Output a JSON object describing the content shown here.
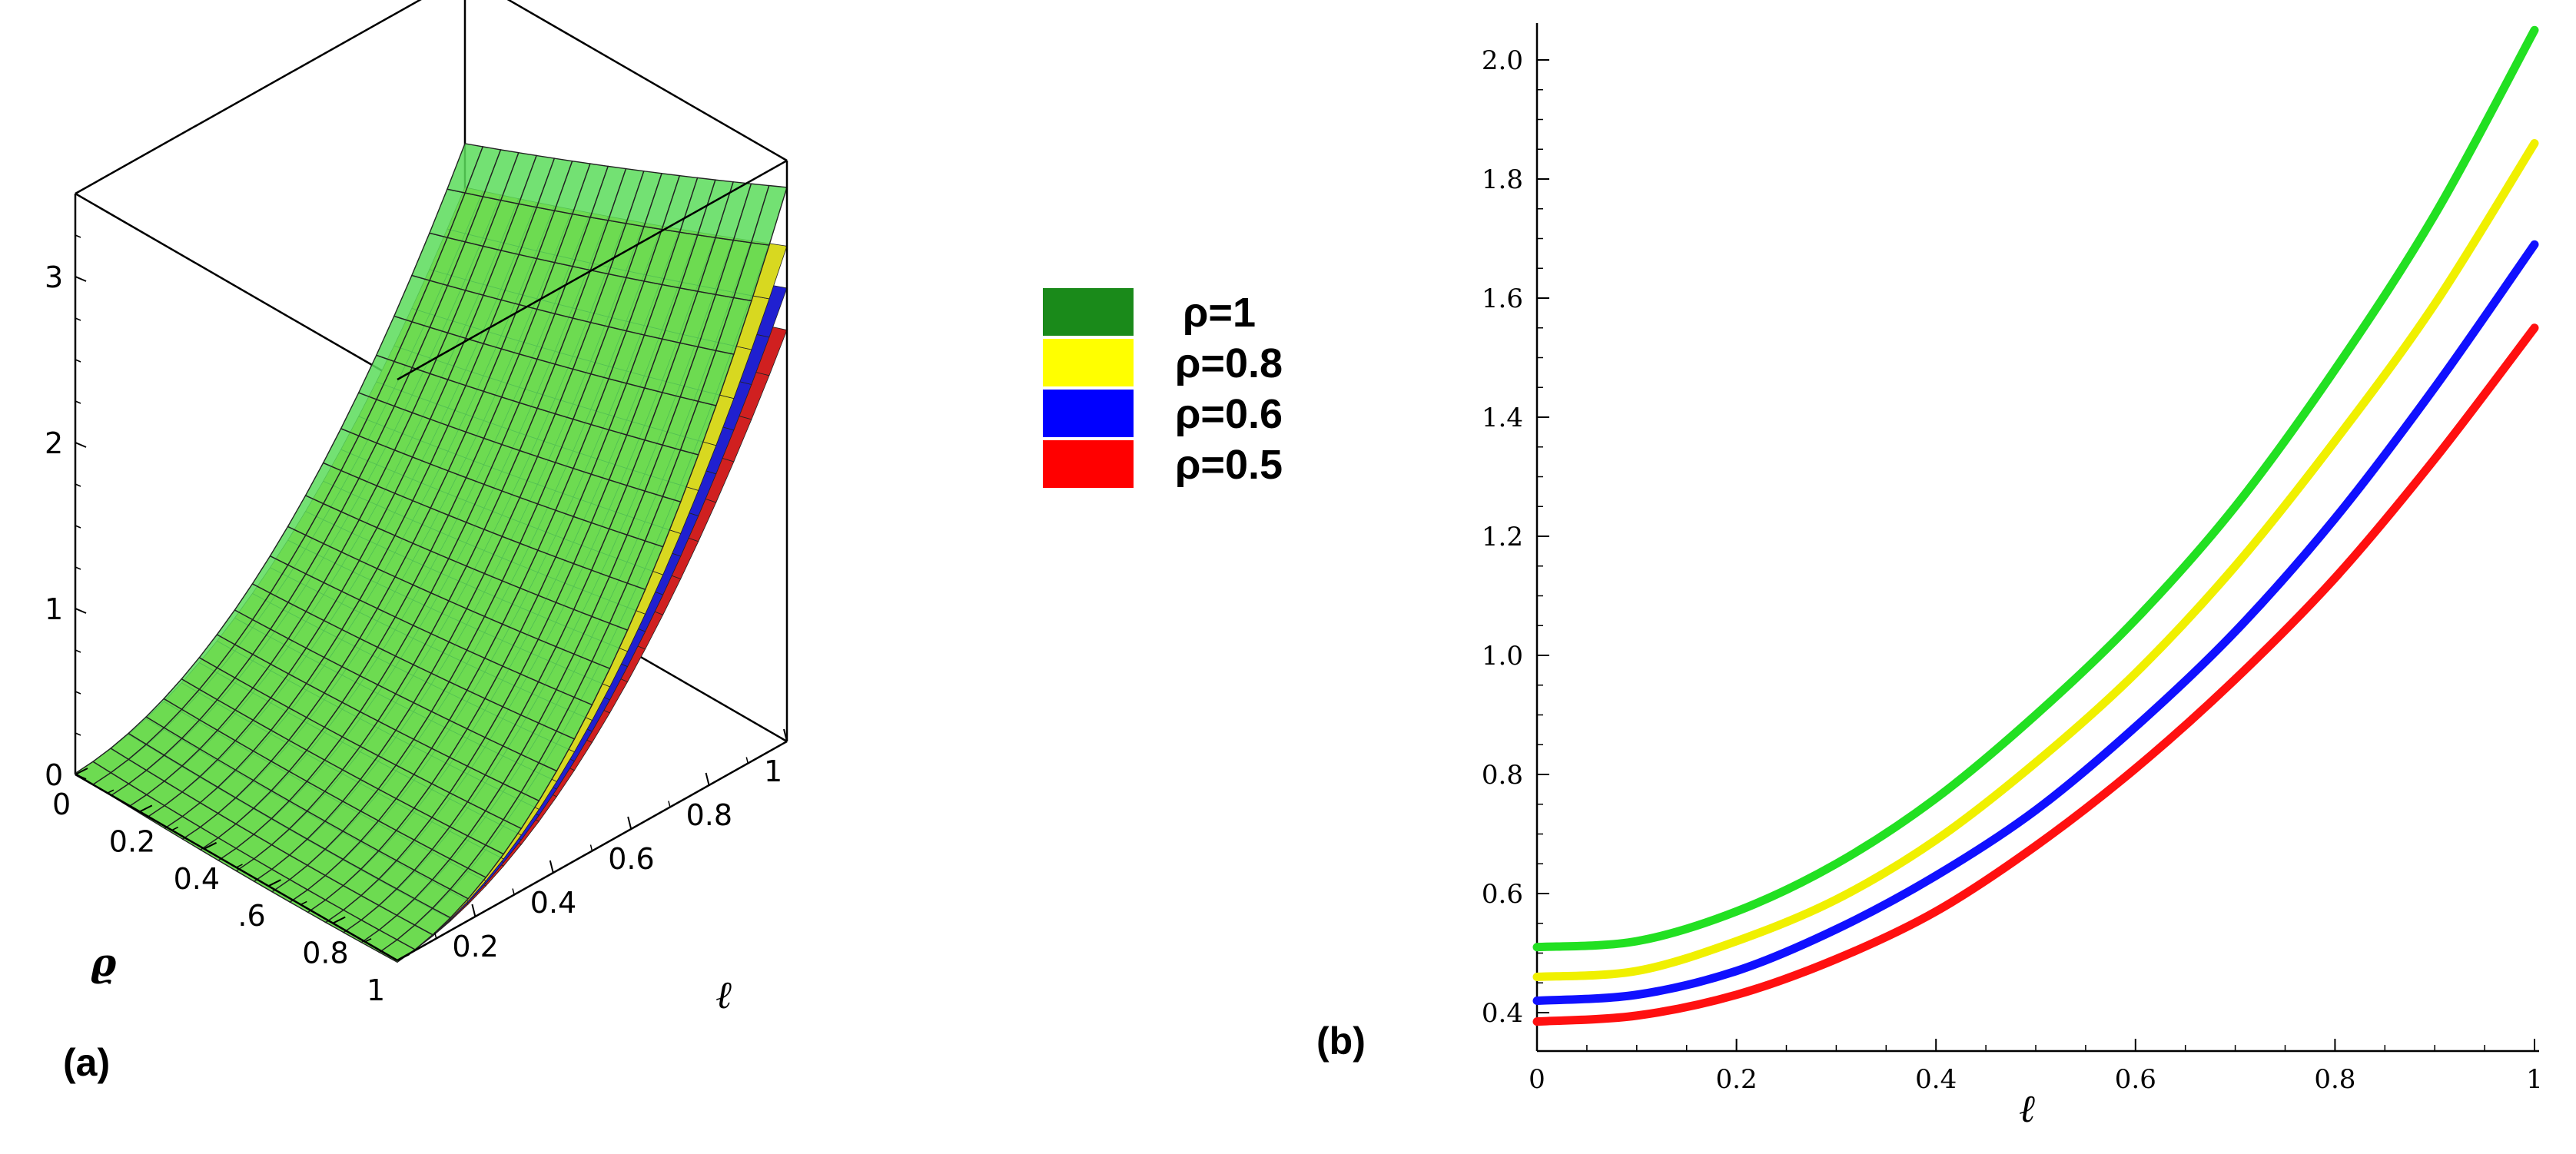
{
  "chart_data": [
    {
      "type": "surface3d",
      "panel_label": "(a)",
      "xlabel": "ϱ",
      "ylabel": "ℓ",
      "x_ticks": [
        "0",
        "0.2",
        "0.4",
        ".6",
        "0.8",
        "1"
      ],
      "y_ticks": [
        "0.2",
        "0.4",
        "0.6",
        "0.8",
        "1"
      ],
      "z_ticks": [
        "0",
        "1",
        "2",
        "3"
      ],
      "xlim": [
        0,
        1
      ],
      "ylim": [
        0,
        1
      ],
      "zlim": [
        0,
        3.5
      ],
      "series": [
        {
          "name": "ρ=1",
          "color": "#1a8a1a",
          "surface_color": "#4fd84f",
          "z_at_corner": 3.3
        },
        {
          "name": "ρ=0.8",
          "color": "#ffff00",
          "surface_color": "#d8d820",
          "z_at_corner": 2.95
        },
        {
          "name": "ρ=0.6",
          "color": "#0000ff",
          "surface_color": "#2020d0",
          "z_at_corner": 2.7
        },
        {
          "name": "ρ=0.5",
          "color": "#ff0000",
          "surface_color": "#d02020",
          "z_at_corner": 2.45
        }
      ],
      "legend": [
        "ρ=1",
        "ρ=0.8",
        "ρ=0.6",
        "ρ=0.5"
      ]
    },
    {
      "type": "line",
      "panel_label": "(b)",
      "xlabel": "ℓ",
      "ylabel": "",
      "xlim": [
        0,
        1
      ],
      "ylim": [
        0.37,
        2.06
      ],
      "x_ticks": [
        "0",
        "0.2",
        "0.4",
        "0.6",
        "0.8",
        "1"
      ],
      "y_ticks": [
        "0.4",
        "0.6",
        "0.8",
        "1.0",
        "1.2",
        "1.4",
        "1.6",
        "1.8",
        "2.0"
      ],
      "x": [
        0,
        0.1,
        0.2,
        0.3,
        0.4,
        0.5,
        0.6,
        0.7,
        0.8,
        0.9,
        1.0
      ],
      "series": [
        {
          "name": "ρ=1",
          "color": "#22e022",
          "values": [
            0.51,
            0.52,
            0.57,
            0.65,
            0.76,
            0.9,
            1.06,
            1.25,
            1.48,
            1.74,
            2.05
          ]
        },
        {
          "name": "ρ=0.8",
          "color": "#f0f000",
          "values": [
            0.46,
            0.47,
            0.52,
            0.59,
            0.69,
            0.82,
            0.97,
            1.15,
            1.36,
            1.59,
            1.86
          ]
        },
        {
          "name": "ρ=0.6",
          "color": "#1010ff",
          "values": [
            0.42,
            0.43,
            0.47,
            0.54,
            0.63,
            0.74,
            0.88,
            1.04,
            1.23,
            1.45,
            1.69
          ]
        },
        {
          "name": "ρ=0.5",
          "color": "#ff1010",
          "values": [
            0.385,
            0.395,
            0.43,
            0.49,
            0.57,
            0.68,
            0.81,
            0.96,
            1.13,
            1.33,
            1.55
          ]
        }
      ]
    }
  ]
}
